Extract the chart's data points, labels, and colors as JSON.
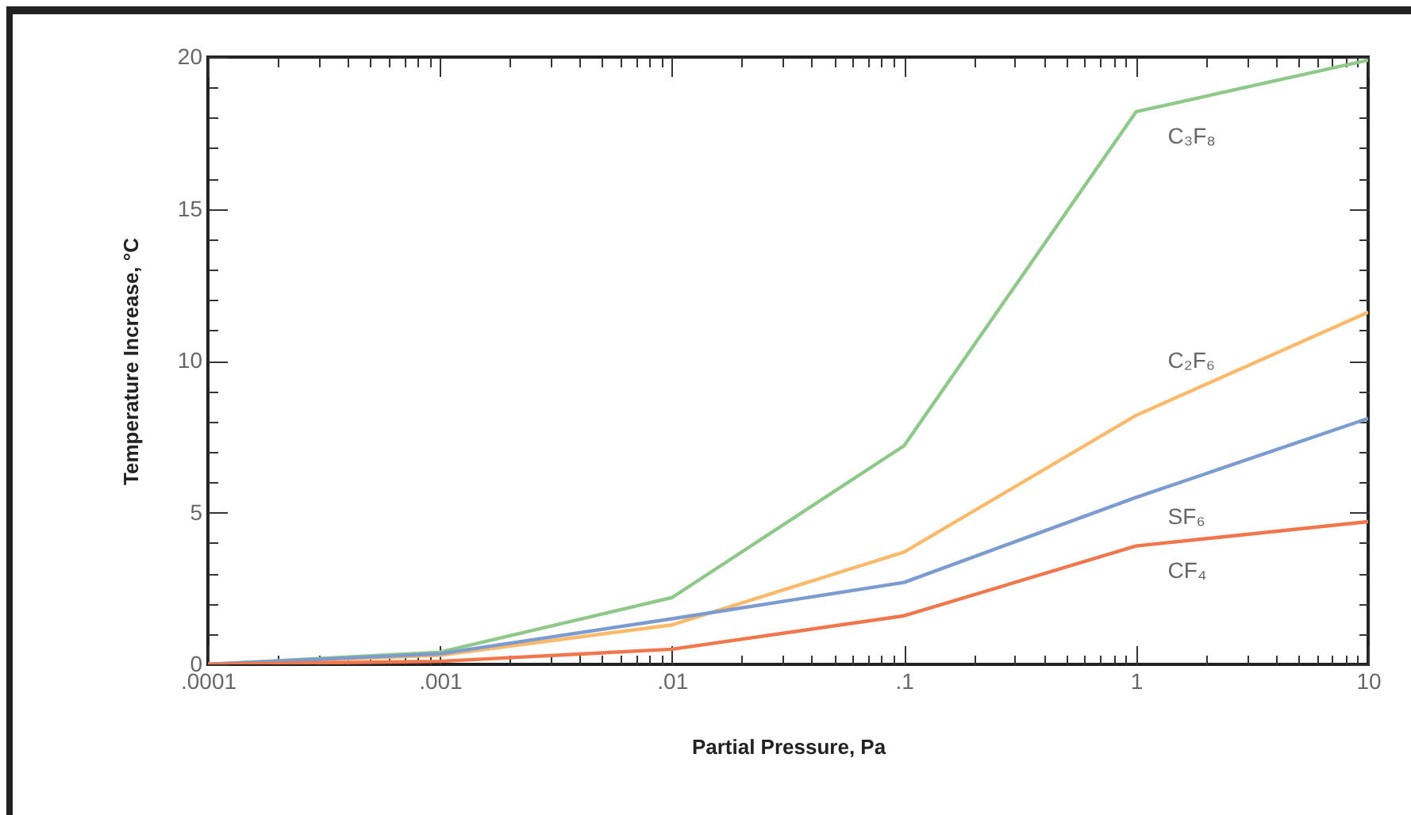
{
  "chart_data": {
    "type": "line",
    "xlabel": "Partial Pressure, Pa",
    "ylabel": "Temperature Increase, °C",
    "log": "x",
    "x": [
      0.0001,
      0.001,
      0.01,
      0.1,
      1,
      10
    ],
    "series": [
      {
        "name": "C₃F₈",
        "color": "#8ec98a",
        "values": [
          0,
          0.4,
          2.2,
          7.2,
          18.2,
          19.9
        ]
      },
      {
        "name": "C₂F₆",
        "color": "#fdb96a",
        "values": [
          0,
          0.3,
          1.3,
          3.7,
          8.2,
          11.6
        ]
      },
      {
        "name": "SF₆",
        "color": "#7b9bd1",
        "values": [
          0,
          0.35,
          1.5,
          2.7,
          5.5,
          8.1
        ]
      },
      {
        "name": "CF₄",
        "color": "#f2764c",
        "values": [
          0,
          0.1,
          0.5,
          1.6,
          3.9,
          4.7
        ]
      }
    ],
    "xlim": [
      0.0001,
      10
    ],
    "xticks": [
      {
        "value": 0.0001,
        "label": ".0001"
      },
      {
        "value": 0.0002,
        "label": null
      },
      {
        "value": 0.0003,
        "label": null
      },
      {
        "value": 0.0004,
        "label": null
      },
      {
        "value": 0.0005,
        "label": null
      },
      {
        "value": 0.0006,
        "label": null
      },
      {
        "value": 0.0007,
        "label": null
      },
      {
        "value": 0.0008,
        "label": null
      },
      {
        "value": 0.0009,
        "label": null
      },
      {
        "value": 0.001,
        "label": ".001"
      },
      {
        "value": 0.002,
        "label": null
      },
      {
        "value": 0.003,
        "label": null
      },
      {
        "value": 0.004,
        "label": null
      },
      {
        "value": 0.005,
        "label": null
      },
      {
        "value": 0.006,
        "label": null
      },
      {
        "value": 0.007,
        "label": null
      },
      {
        "value": 0.008,
        "label": null
      },
      {
        "value": 0.009,
        "label": null
      },
      {
        "value": 0.01,
        "label": ".01"
      },
      {
        "value": 0.02,
        "label": null
      },
      {
        "value": 0.03,
        "label": null
      },
      {
        "value": 0.04,
        "label": null
      },
      {
        "value": 0.05,
        "label": null
      },
      {
        "value": 0.06,
        "label": null
      },
      {
        "value": 0.07,
        "label": null
      },
      {
        "value": 0.08,
        "label": null
      },
      {
        "value": 0.09,
        "label": null
      },
      {
        "value": 0.1,
        "label": ".1"
      },
      {
        "value": 0.2,
        "label": null
      },
      {
        "value": 0.3,
        "label": null
      },
      {
        "value": 0.4,
        "label": null
      },
      {
        "value": 0.5,
        "label": null
      },
      {
        "value": 0.6,
        "label": null
      },
      {
        "value": 0.7,
        "label": null
      },
      {
        "value": 0.8,
        "label": null
      },
      {
        "value": 0.9,
        "label": null
      },
      1,
      {
        "value": 2,
        "label": null
      },
      {
        "value": 3,
        "label": null
      },
      {
        "value": 4,
        "label": null
      },
      {
        "value": 5,
        "label": null
      },
      {
        "value": 6,
        "label": null
      },
      {
        "value": 7,
        "label": null
      },
      {
        "value": 8,
        "label": null
      },
      {
        "value": 9,
        "label": null
      },
      10
    ],
    "ylim": [
      0,
      20
    ],
    "yticks": [
      0,
      {
        "value": 1,
        "label": null
      },
      {
        "value": 2,
        "label": null
      },
      {
        "value": 3,
        "label": null
      },
      {
        "value": 4,
        "label": null
      },
      5,
      {
        "value": 6,
        "label": null
      },
      {
        "value": 7,
        "label": null
      },
      {
        "value": 8,
        "label": null
      },
      {
        "value": 9,
        "label": null
      },
      10,
      {
        "value": 11,
        "label": null
      },
      {
        "value": 12,
        "label": null
      },
      {
        "value": 13,
        "label": null
      },
      {
        "value": 14,
        "label": null
      },
      15,
      {
        "value": 16,
        "label": null
      },
      {
        "value": 17,
        "label": null
      },
      {
        "value": 18,
        "label": null
      },
      {
        "value": 19,
        "label": null
      },
      20
    ],
    "grid": false,
    "marker": "none",
    "line_style": "solid"
  }
}
